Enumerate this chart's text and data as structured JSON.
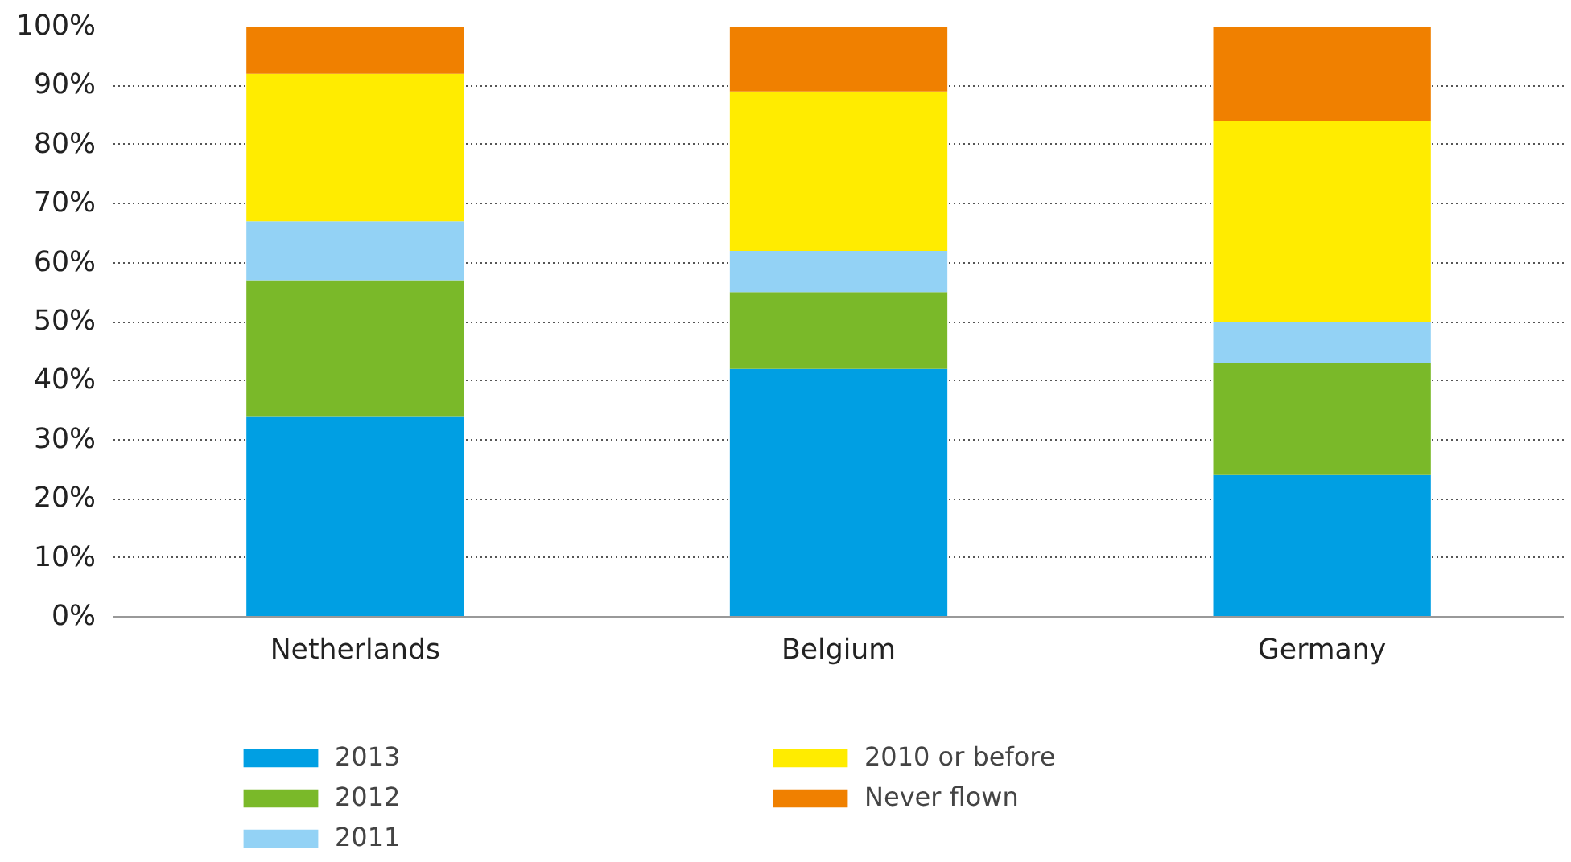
{
  "chart_data": {
    "type": "bar",
    "stacked": true,
    "categories": [
      "Netherlands",
      "Belgium",
      "Germany"
    ],
    "series": [
      {
        "name": "2013",
        "color": "#009fe3",
        "values": [
          34,
          42,
          24
        ]
      },
      {
        "name": "2012",
        "color": "#7ab929",
        "values": [
          23,
          13,
          19
        ]
      },
      {
        "name": "2011",
        "color": "#93d2f5",
        "values": [
          10,
          7,
          7
        ]
      },
      {
        "name": "2010 or before",
        "color": "#ffec00",
        "values": [
          25,
          27,
          34
        ]
      },
      {
        "name": "Never flown",
        "color": "#f08000",
        "values": [
          8,
          11,
          16
        ]
      }
    ],
    "ylim": [
      0,
      100
    ],
    "yticks": [
      {
        "value": 0,
        "label": "0%"
      },
      {
        "value": 10,
        "label": "10%"
      },
      {
        "value": 20,
        "label": "20%"
      },
      {
        "value": 30,
        "label": "30%"
      },
      {
        "value": 40,
        "label": "40%"
      },
      {
        "value": 50,
        "label": "50%"
      },
      {
        "value": 60,
        "label": "60%"
      },
      {
        "value": 70,
        "label": "70%"
      },
      {
        "value": 80,
        "label": "80%"
      },
      {
        "value": 90,
        "label": "90%"
      },
      {
        "value": 100,
        "label": "100%"
      }
    ],
    "grid": "y",
    "legend": "bottom left"
  }
}
